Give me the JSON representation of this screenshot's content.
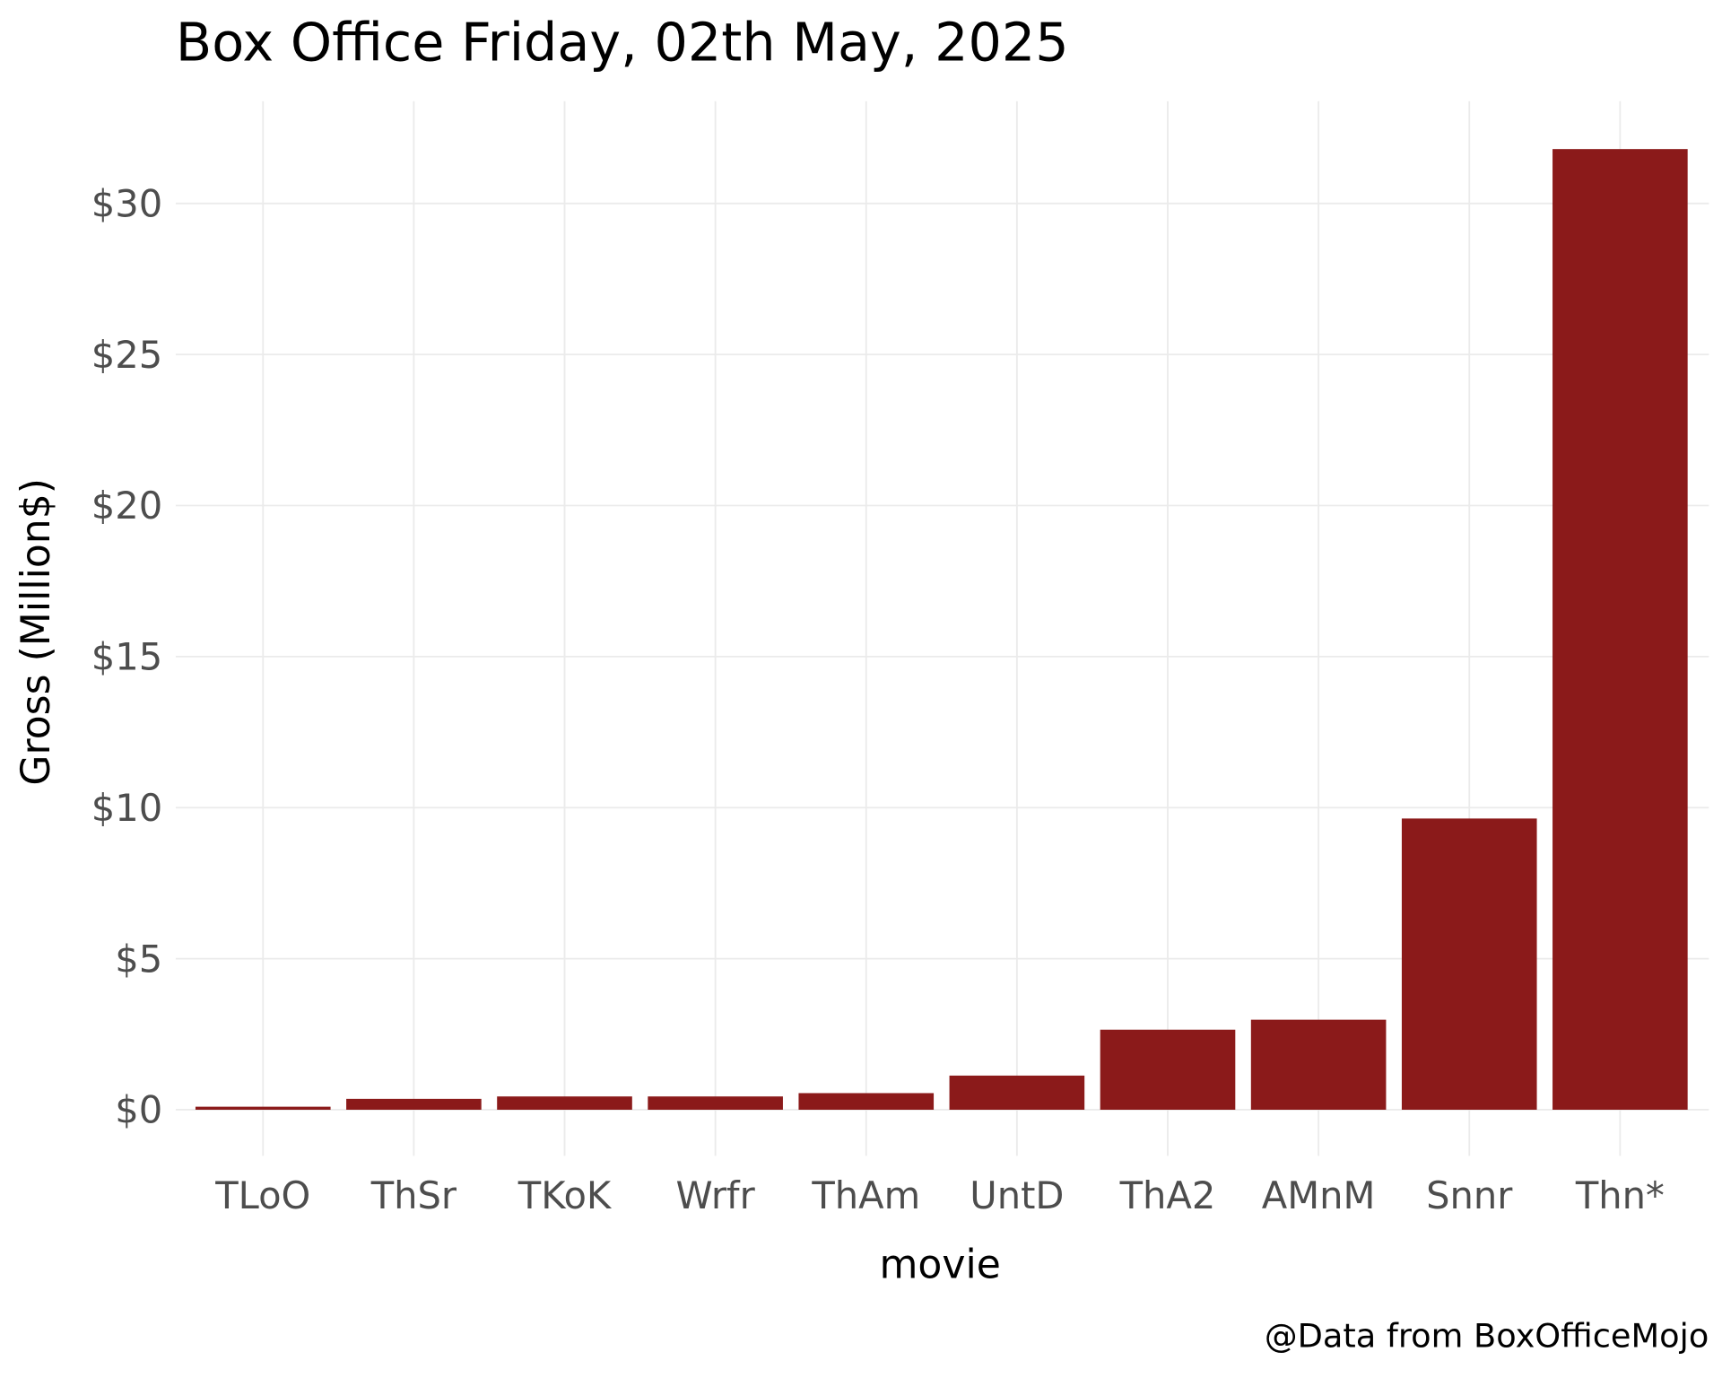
{
  "chart_data": {
    "type": "bar",
    "title": "Box Office Friday, 02th May, 2025",
    "xlabel": "movie",
    "ylabel": "Gross (Million$)",
    "caption": "@Data from BoxOfficeMojo",
    "categories": [
      "TLoO",
      "ThSr",
      "TKoK",
      "Wrfr",
      "ThAm",
      "UntD",
      "ThA2",
      "AMnM",
      "Snnr",
      "Thn*"
    ],
    "values": [
      0.1,
      0.36,
      0.44,
      0.44,
      0.55,
      1.13,
      2.65,
      2.98,
      9.64,
      31.8
    ],
    "ylim": [
      0,
      32
    ],
    "yticks": [
      0,
      5,
      10,
      15,
      20,
      25,
      30
    ],
    "ytick_labels": [
      "$0",
      "$5",
      "$10",
      "$15",
      "$20",
      "$25",
      "$30"
    ],
    "bar_color": "#8b1a1a",
    "grid": true,
    "legend": "none"
  }
}
